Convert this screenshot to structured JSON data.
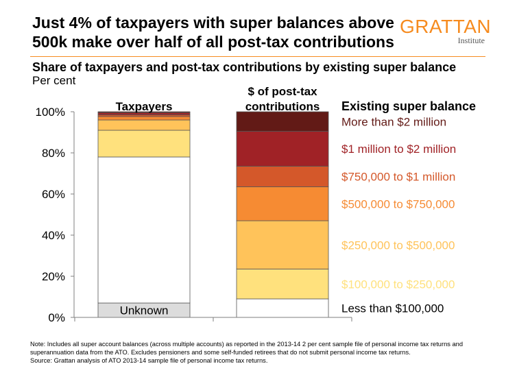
{
  "title": "Just 4% of taxpayers with super balances above 500k make over half of all post-tax contributions",
  "logo": {
    "name": "GRATTAN",
    "sub": "Institute"
  },
  "subtitle": "Share of taxpayers and post-tax contributions by existing super balance",
  "unit": "Per cent",
  "note": "Note: Includes all super account balances (across multiple accounts) as reported in the 2013-14 2 per cent sample file of personal income tax returns and superannuation data from the ATO. Excludes pensioners and some self-funded retirees that do not submit personal income tax returns.",
  "source": "Source: Grattan analysis of ATO 2013-14 sample file of personal income tax returns.",
  "chart_data": {
    "type": "bar",
    "stacked": true,
    "categories": [
      "Taxpayers",
      "$ of post-tax contributions"
    ],
    "legend_title": "Existing super balance",
    "ylim": [
      0,
      100
    ],
    "y_ticks": [
      "0%",
      "20%",
      "40%",
      "60%",
      "80%",
      "100%"
    ],
    "series": [
      {
        "name": "Unknown",
        "values": [
          7,
          0
        ],
        "color": "#DCDCDC"
      },
      {
        "name": "Less than $100,000",
        "values": [
          71,
          9
        ],
        "color": "#FFFFFF"
      },
      {
        "name": "$100,000 to $250,000",
        "values": [
          13,
          14.5
        ],
        "color": "#FFE17D"
      },
      {
        "name": "$250,000 to $500,000",
        "values": [
          5,
          23.5
        ],
        "color": "#FFC35A"
      },
      {
        "name": "$500,000 to $750,000",
        "values": [
          1.7,
          16.5
        ],
        "color": "#F68B33"
      },
      {
        "name": "$750,000 to $1 million",
        "values": [
          0.8,
          10
        ],
        "color": "#D4582A"
      },
      {
        "name": "$1 million to $2 million",
        "values": [
          1,
          17
        ],
        "color": "#A02226"
      },
      {
        "name": "More than $2 million",
        "values": [
          0.5,
          9.5
        ],
        "color": "#621A16"
      }
    ],
    "legend_text_colors": [
      "#000000",
      "#000000",
      "#FFE17D",
      "#FFC35A",
      "#F68B33",
      "#D4582A",
      "#A02226",
      "#621A16"
    ]
  }
}
